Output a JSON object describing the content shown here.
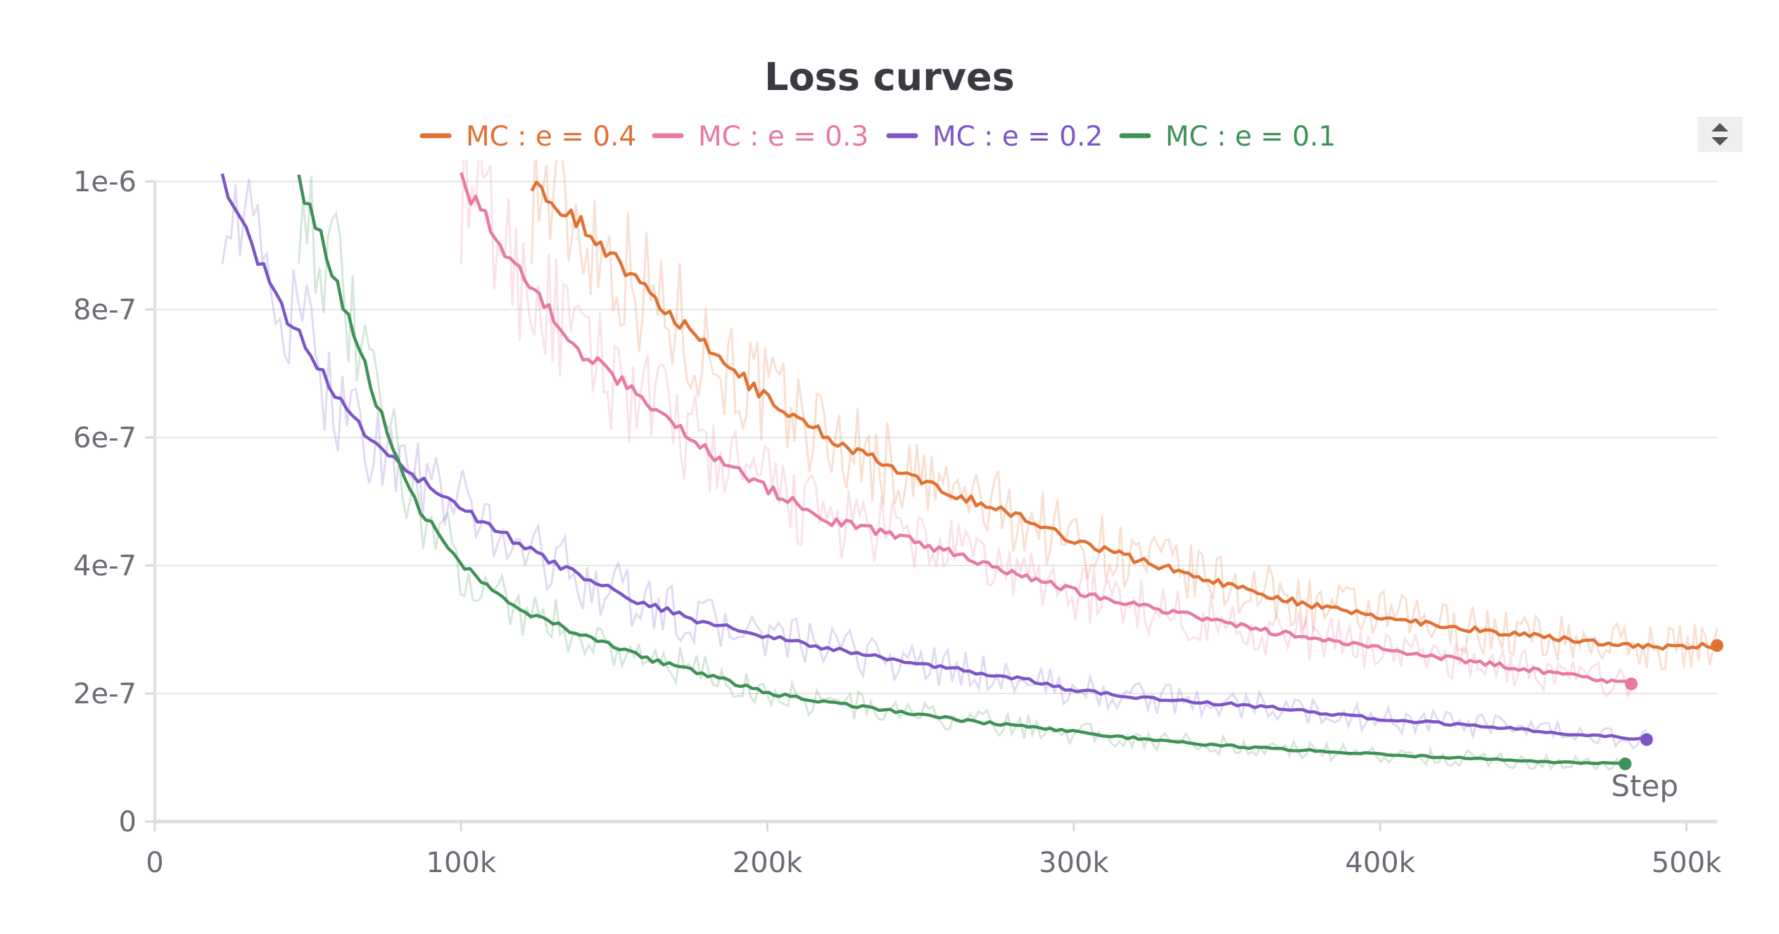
{
  "chart_data": {
    "type": "line",
    "title": "Loss curves",
    "xlabel": "Step",
    "ylabel": "",
    "xlim": [
      0,
      510000
    ],
    "ylim": [
      0,
      1e-06
    ],
    "x_ticks": [
      {
        "value": 0,
        "label": "0"
      },
      {
        "value": 100000,
        "label": "100k"
      },
      {
        "value": 200000,
        "label": "200k"
      },
      {
        "value": 300000,
        "label": "300k"
      },
      {
        "value": 400000,
        "label": "400k"
      },
      {
        "value": 500000,
        "label": "500k"
      }
    ],
    "y_ticks": [
      {
        "value": 0,
        "label": "0"
      },
      {
        "value": 2e-07,
        "label": "2e-7"
      },
      {
        "value": 4e-07,
        "label": "4e-7"
      },
      {
        "value": 6e-07,
        "label": "6e-7"
      },
      {
        "value": 8e-07,
        "label": "8e-7"
      },
      {
        "value": 1e-06,
        "label": "1e-6"
      }
    ],
    "grid": true,
    "legend_position": "top",
    "series": [
      {
        "name": "MC : e = 0.4",
        "color": "#e07132",
        "x": [
          123000,
          140000,
          160000,
          180000,
          200000,
          220000,
          250000,
          280000,
          300000,
          320000,
          350000,
          380000,
          400000,
          430000,
          460000,
          490000,
          510000
        ],
        "y": [
          1e-06,
          9.3e-07,
          8.3e-07,
          7.4e-07,
          6.6e-07,
          6e-07,
          5.3e-07,
          4.8e-07,
          4.4e-07,
          4.1e-07,
          3.7e-07,
          3.35e-07,
          3.2e-07,
          3e-07,
          2.85e-07,
          2.72e-07,
          2.75e-07
        ]
      },
      {
        "name": "MC : e = 0.3",
        "color": "#e8799f",
        "x": [
          100000,
          110000,
          120000,
          130000,
          140000,
          160000,
          180000,
          200000,
          220000,
          240000,
          260000,
          280000,
          300000,
          330000,
          360000,
          400000,
          430000,
          460000,
          482000
        ],
        "y": [
          1e-06,
          9.3e-07,
          8.5e-07,
          7.9e-07,
          7.3e-07,
          6.6e-07,
          5.8e-07,
          5.2e-07,
          4.7e-07,
          4.5e-07,
          4.2e-07,
          3.9e-07,
          3.6e-07,
          3.3e-07,
          3e-07,
          2.7e-07,
          2.5e-07,
          2.3e-07,
          2.15e-07
        ]
      },
      {
        "name": "MC : e = 0.2",
        "color": "#7d55c7",
        "x": [
          22000,
          30000,
          40000,
          50000,
          60000,
          70000,
          80000,
          90000,
          100000,
          120000,
          140000,
          160000,
          180000,
          200000,
          220000,
          250000,
          280000,
          300000,
          330000,
          360000,
          400000,
          430000,
          460000,
          487000
        ],
        "y": [
          1e-06,
          9.2e-07,
          8.1e-07,
          7.4e-07,
          6.6e-07,
          6e-07,
          5.6e-07,
          5.2e-07,
          4.9e-07,
          4.3e-07,
          3.8e-07,
          3.4e-07,
          3.1e-07,
          2.9e-07,
          2.7e-07,
          2.45e-07,
          2.25e-07,
          2.05e-07,
          1.9e-07,
          1.8e-07,
          1.6e-07,
          1.5e-07,
          1.38e-07,
          1.28e-07
        ]
      },
      {
        "name": "MC : e = 0.1",
        "color": "#3e9157",
        "x": [
          47000,
          55000,
          65000,
          75000,
          85000,
          95000,
          105000,
          120000,
          140000,
          160000,
          180000,
          200000,
          230000,
          260000,
          300000,
          330000,
          360000,
          400000,
          430000,
          460000,
          480000
        ],
        "y": [
          1e-06,
          9e-07,
          7.6e-07,
          6.2e-07,
          5e-07,
          4.3e-07,
          3.8e-07,
          3.3e-07,
          2.9e-07,
          2.55e-07,
          2.3e-07,
          2e-07,
          1.8e-07,
          1.6e-07,
          1.4e-07,
          1.25e-07,
          1.15e-07,
          1.05e-07,
          9.8e-08,
          9.2e-08,
          9e-08
        ]
      }
    ]
  },
  "controls": {
    "legend_scroll_icon": "up-down-arrows-icon"
  }
}
